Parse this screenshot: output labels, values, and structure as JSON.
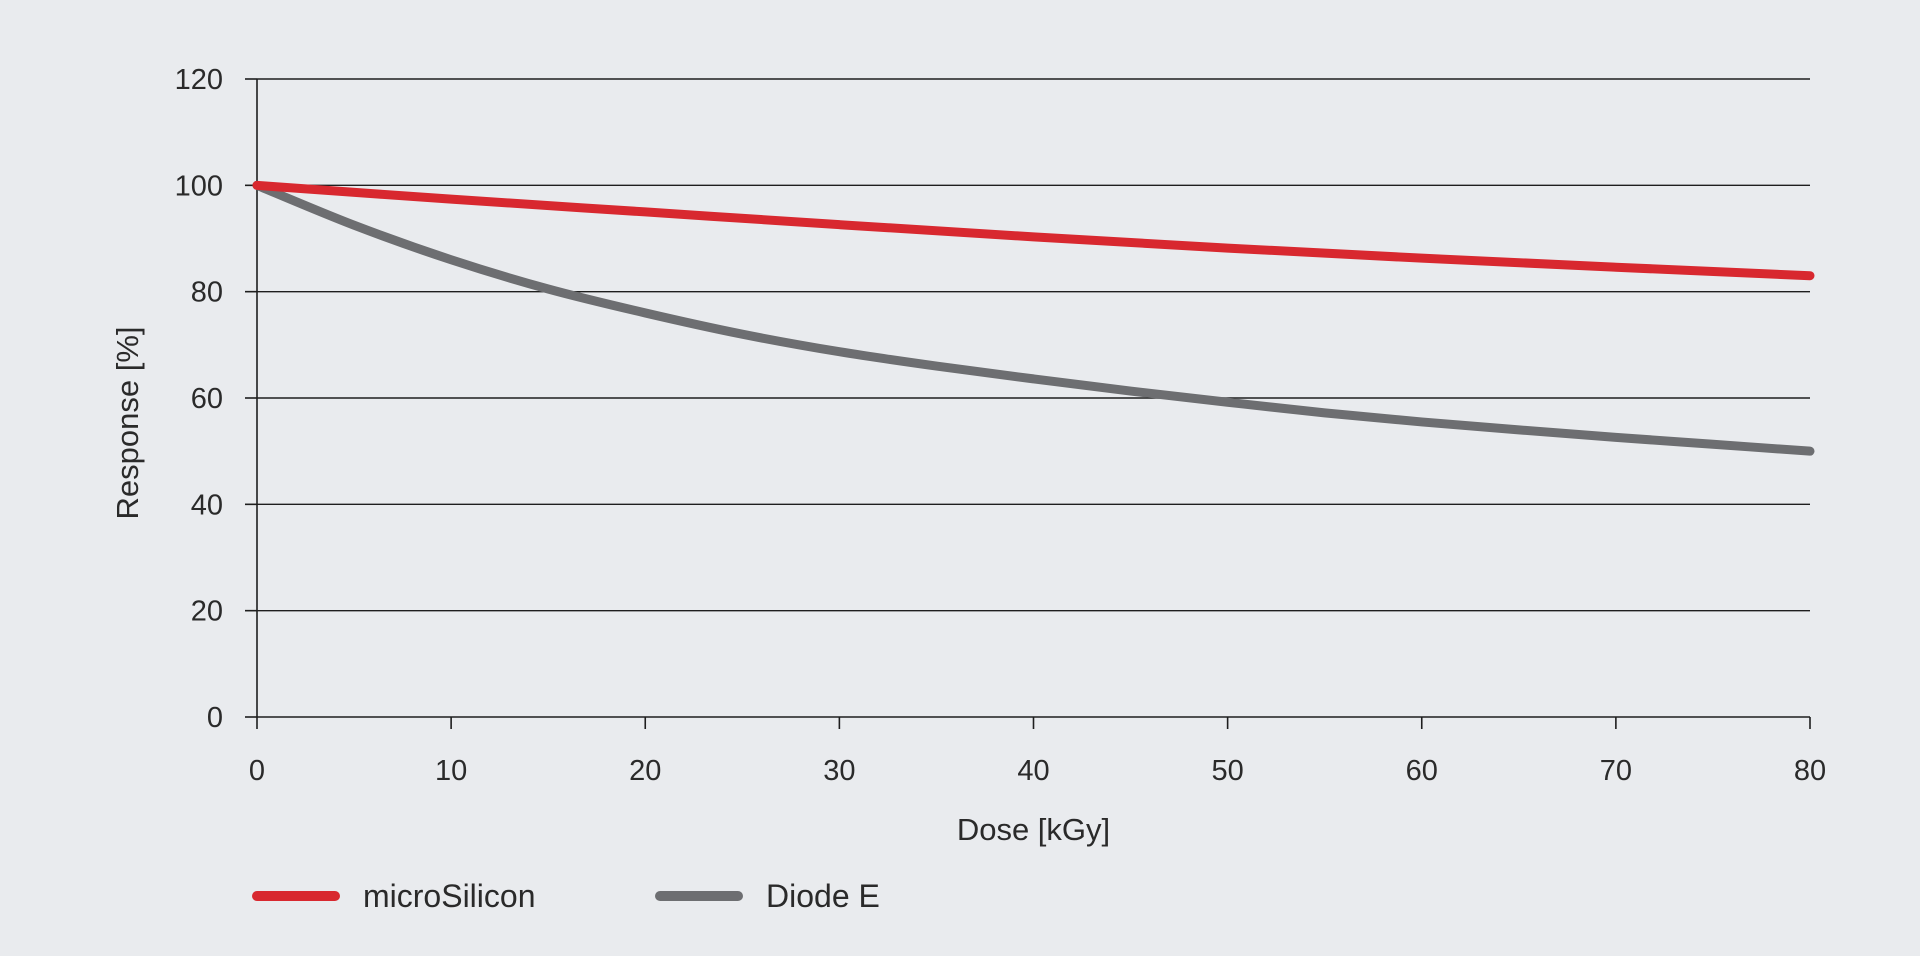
{
  "chart_data": {
    "type": "line",
    "xlabel": "Dose [kGy]",
    "ylabel": "Response [%]",
    "xlim": [
      0,
      80
    ],
    "ylim": [
      0,
      120
    ],
    "x_ticks": [
      0,
      10,
      20,
      30,
      40,
      50,
      60,
      70,
      80
    ],
    "y_ticks": [
      0,
      20,
      40,
      60,
      80,
      100,
      120
    ],
    "x_tick_labels": [
      "0",
      "10",
      "20",
      "30",
      "40",
      "50",
      "60",
      "70",
      "80"
    ],
    "y_tick_labels": [
      "0",
      "20",
      "40",
      "60",
      "80",
      "100",
      "120"
    ],
    "grid": "horizontal",
    "legend_position": "bottom-left",
    "series": [
      {
        "name": "microSilicon",
        "color": "#d8282f",
        "x": [
          0,
          10,
          20,
          30,
          40,
          50,
          60,
          70,
          80
        ],
        "y": [
          100,
          97.4,
          95,
          92.6,
          90.3,
          88.2,
          86.3,
          84.6,
          83
        ]
      },
      {
        "name": "Diode E",
        "color": "#6d6e71",
        "x": [
          0,
          5,
          10,
          15,
          20,
          25,
          30,
          35,
          40,
          45,
          50,
          55,
          60,
          65,
          70,
          75,
          80
        ],
        "y": [
          100,
          92.5,
          86,
          80.5,
          76,
          72,
          68.7,
          66,
          63.6,
          61.3,
          59.2,
          57.2,
          55.5,
          54,
          52.6,
          51.3,
          50
        ]
      }
    ]
  }
}
